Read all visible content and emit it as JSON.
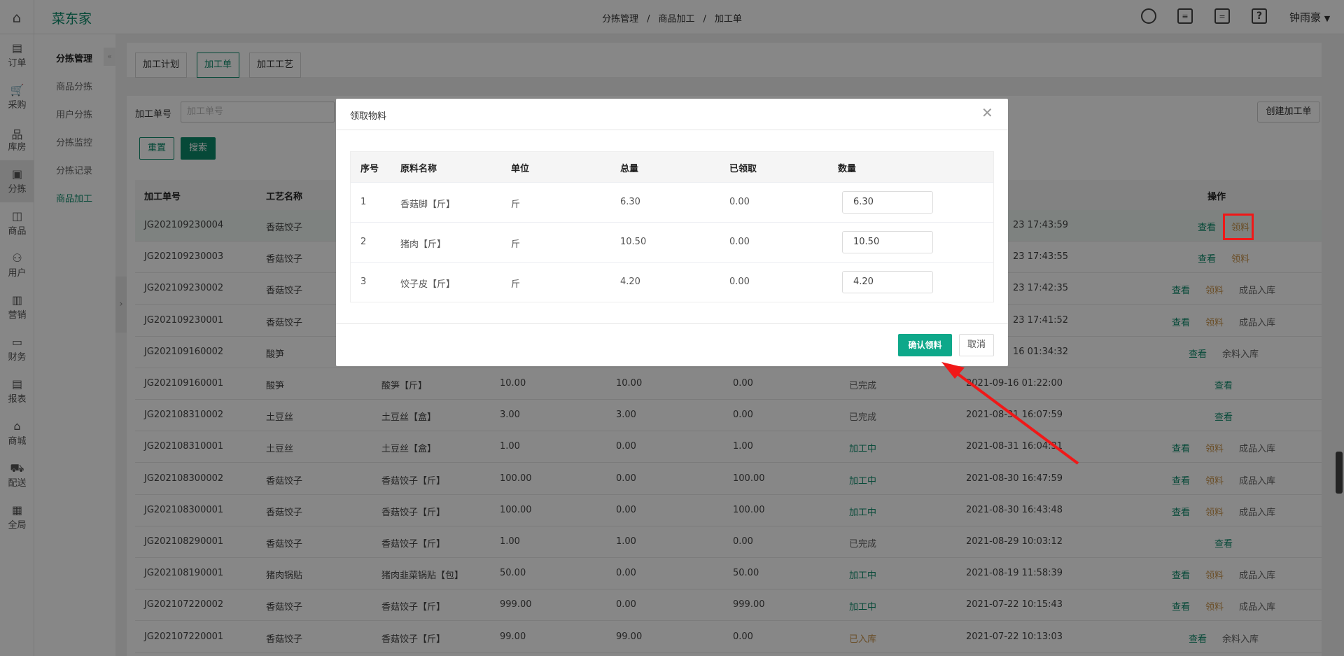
{
  "topbar": {
    "brand": "菜东家",
    "breadcrumb": [
      "分拣管理",
      "/",
      "商品加工",
      "/",
      "加工单"
    ],
    "user": "钟雨豪",
    "icons": [
      "refresh-icon",
      "clipboard-icon",
      "message-icon",
      "help-icon"
    ]
  },
  "rail": [
    {
      "label": "订单",
      "icon": "▤"
    },
    {
      "label": "采购",
      "icon": "🛒"
    },
    {
      "label": "库房",
      "icon": "品"
    },
    {
      "label": "分拣",
      "icon": "▣"
    },
    {
      "label": "商品",
      "icon": "◫"
    },
    {
      "label": "用户",
      "icon": "⚇"
    },
    {
      "label": "营销",
      "icon": "▥"
    },
    {
      "label": "财务",
      "icon": "▭"
    },
    {
      "label": "报表",
      "icon": "▤"
    },
    {
      "label": "商城",
      "icon": "⌂"
    },
    {
      "label": "配送",
      "icon": "⛟"
    },
    {
      "label": "全局",
      "icon": "▦"
    }
  ],
  "submenu": {
    "title": "分拣管理",
    "items": [
      "商品分拣",
      "用户分拣",
      "分拣监控",
      "分拣记录",
      "商品加工"
    ],
    "active": "商品加工"
  },
  "tabs": [
    "加工计划",
    "加工单",
    "加工工艺"
  ],
  "filter": {
    "label": "加工单号",
    "placeholder": "加工单号",
    "reset": "重置",
    "search": "搜索",
    "create": "创建加工单"
  },
  "table": {
    "headers": [
      "加工单号",
      "工艺名称",
      "操作"
    ],
    "rows": [
      {
        "id": "JG202109230004",
        "craft": "香菇饺子",
        "product": "",
        "a": "",
        "b": "",
        "c": "",
        "status": "",
        "time": "23 17:43:59",
        "ops": [
          "查看",
          "领料"
        ]
      },
      {
        "id": "JG202109230003",
        "craft": "香菇饺子",
        "product": "",
        "a": "",
        "b": "",
        "c": "",
        "status": "",
        "time": "23 17:43:55",
        "ops": [
          "查看",
          "领料"
        ]
      },
      {
        "id": "JG202109230002",
        "craft": "香菇饺子",
        "product": "",
        "a": "",
        "b": "",
        "c": "",
        "status": "",
        "time": "23 17:42:35",
        "ops": [
          "查看",
          "领料",
          "成品入库"
        ]
      },
      {
        "id": "JG202109230001",
        "craft": "香菇饺子",
        "product": "",
        "a": "",
        "b": "",
        "c": "",
        "status": "",
        "time": "23 17:41:52",
        "ops": [
          "查看",
          "领料",
          "成品入库"
        ]
      },
      {
        "id": "JG202109160002",
        "craft": "酸笋",
        "product": "",
        "a": "",
        "b": "",
        "c": "",
        "status": "",
        "time": "16 01:34:32",
        "ops": [
          "查看",
          "余料入库"
        ]
      },
      {
        "id": "JG202109160001",
        "craft": "酸笋",
        "product": "酸笋【斤】",
        "a": "10.00",
        "b": "10.00",
        "c": "0.00",
        "status": "已完成",
        "time": "2021-09-16 01:22:00",
        "ops": [
          "查看"
        ]
      },
      {
        "id": "JG202108310002",
        "craft": "土豆丝",
        "product": "土豆丝【盒】",
        "a": "3.00",
        "b": "3.00",
        "c": "0.00",
        "status": "已完成",
        "time": "2021-08-31 16:07:59",
        "ops": [
          "查看"
        ]
      },
      {
        "id": "JG202108310001",
        "craft": "土豆丝",
        "product": "土豆丝【盒】",
        "a": "1.00",
        "b": "0.00",
        "c": "1.00",
        "status": "加工中",
        "time": "2021-08-31 16:04:31",
        "ops": [
          "查看",
          "领料",
          "成品入库"
        ]
      },
      {
        "id": "JG202108300002",
        "craft": "香菇饺子",
        "product": "香菇饺子【斤】",
        "a": "100.00",
        "b": "0.00",
        "c": "100.00",
        "status": "加工中",
        "time": "2021-08-30 16:47:59",
        "ops": [
          "查看",
          "领料",
          "成品入库"
        ]
      },
      {
        "id": "JG202108300001",
        "craft": "香菇饺子",
        "product": "香菇饺子【斤】",
        "a": "100.00",
        "b": "0.00",
        "c": "100.00",
        "status": "加工中",
        "time": "2021-08-30 16:43:48",
        "ops": [
          "查看",
          "领料",
          "成品入库"
        ]
      },
      {
        "id": "JG202108290001",
        "craft": "香菇饺子",
        "product": "香菇饺子【斤】",
        "a": "1.00",
        "b": "1.00",
        "c": "0.00",
        "status": "已完成",
        "time": "2021-08-29 10:03:12",
        "ops": [
          "查看"
        ]
      },
      {
        "id": "JG202108190001",
        "craft": "猪肉锅贴",
        "product": "猪肉韭菜锅贴【包】",
        "a": "50.00",
        "b": "0.00",
        "c": "50.00",
        "status": "加工中",
        "time": "2021-08-19 11:58:39",
        "ops": [
          "查看",
          "领料",
          "成品入库"
        ]
      },
      {
        "id": "JG202107220002",
        "craft": "香菇饺子",
        "product": "香菇饺子【斤】",
        "a": "999.00",
        "b": "0.00",
        "c": "999.00",
        "status": "加工中",
        "time": "2021-07-22 10:15:43",
        "ops": [
          "查看",
          "领料",
          "成品入库"
        ]
      },
      {
        "id": "JG202107220001",
        "craft": "香菇饺子",
        "product": "香菇饺子【斤】",
        "a": "99.00",
        "b": "99.00",
        "c": "0.00",
        "status": "已入库",
        "time": "2021-07-22 10:13:03",
        "ops": [
          "查看",
          "余料入库"
        ]
      }
    ]
  },
  "status_colors": {
    "已完成": "#666666",
    "加工中": "#0c8a6a",
    "已入库": "#c8934a"
  },
  "modal": {
    "title": "领取物料",
    "headers": [
      "序号",
      "原料名称",
      "单位",
      "总量",
      "已领取",
      "数量"
    ],
    "rows": [
      {
        "no": "1",
        "name": "香菇脚【斤】",
        "unit": "斤",
        "total": "6.30",
        "taken": "0.00",
        "qty": "6.30"
      },
      {
        "no": "2",
        "name": "猪肉【斤】",
        "unit": "斤",
        "total": "10.50",
        "taken": "0.00",
        "qty": "10.50"
      },
      {
        "no": "3",
        "name": "饺子皮【斤】",
        "unit": "斤",
        "total": "4.20",
        "taken": "0.00",
        "qty": "4.20"
      }
    ],
    "confirm": "确认领料",
    "cancel": "取消"
  },
  "colors": {
    "brand": "#0c8a6a",
    "confirm": "#0ea88a",
    "annotation": "#f01818"
  }
}
